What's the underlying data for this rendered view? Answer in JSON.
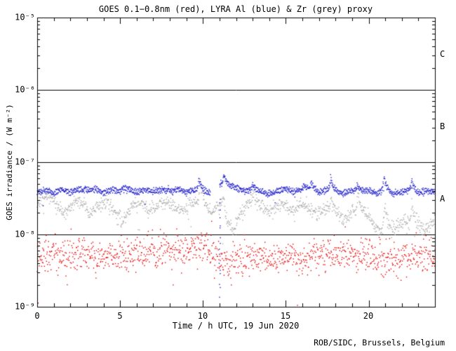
{
  "title": "GOES 0.1−0.8nm (red), LYRA Al (blue) & Zr (grey) proxy",
  "credit": "ROB/SIDC, Brussels, Belgium",
  "colors": {
    "red_series": "#e60000",
    "blue_series": "#1515c8",
    "grey_series": "#a9a9a9",
    "axis": "#000000",
    "background": "#ffffff"
  },
  "chart_data": {
    "type": "scatter",
    "title": "GOES 0.1−0.8nm (red), LYRA Al (blue) & Zr (grey) proxy",
    "xlabel": "Time / h UTC, 19 Jun 2020",
    "ylabel": "GOES irradiance / (W m⁻²)",
    "xlim": [
      0,
      24
    ],
    "ylog10_lim": [
      -9,
      -5
    ],
    "grid": "horizontal decade lines at 1e-6, 1e-7, 1e-8",
    "hlines_exp": [
      -6,
      -7,
      -8
    ],
    "xticks": {
      "major": [
        0,
        5,
        10,
        15,
        20
      ],
      "labels": [
        "0",
        "5",
        "10",
        "15",
        "20"
      ],
      "minor_step_h": 1
    },
    "yticks": {
      "major_exp": [
        -5,
        -6,
        -7,
        -8,
        -9
      ],
      "labels": [
        "10⁻⁵",
        "10⁻⁶",
        "10⁻⁷",
        "10⁻⁸",
        "10⁻⁹"
      ]
    },
    "flare_class_labels": [
      "C",
      "B",
      "A"
    ],
    "flare_class_exp_center": [
      -5.5,
      -6.5,
      -7.5
    ],
    "series": [
      {
        "name": "LYRA Zr proxy",
        "color": "#a9a9a9",
        "n": 1100,
        "sigma_log10": 0.05,
        "anchors_log10": [
          [
            0,
            -7.58
          ],
          [
            0.3,
            -7.5
          ],
          [
            0.8,
            -7.48
          ],
          [
            1.3,
            -7.62
          ],
          [
            1.8,
            -7.68
          ],
          [
            2.3,
            -7.52
          ],
          [
            2.8,
            -7.58
          ],
          [
            3.2,
            -7.72
          ],
          [
            3.7,
            -7.6
          ],
          [
            4.2,
            -7.55
          ],
          [
            4.7,
            -7.68
          ],
          [
            5.2,
            -7.82
          ],
          [
            5.7,
            -7.6
          ],
          [
            6.2,
            -7.55
          ],
          [
            6.7,
            -7.67
          ],
          [
            7.2,
            -7.62
          ],
          [
            7.7,
            -7.55
          ],
          [
            8.2,
            -7.6
          ],
          [
            8.7,
            -7.68
          ],
          [
            9.2,
            -7.6
          ],
          [
            9.6,
            -7.55
          ],
          [
            10.1,
            -7.62
          ],
          [
            10.5,
            -7.7
          ],
          [
            10.9,
            -7.62
          ],
          [
            11.2,
            -7.58
          ],
          [
            11.5,
            -7.88
          ],
          [
            11.8,
            -7.95
          ],
          [
            12.2,
            -7.75
          ],
          [
            12.6,
            -7.6
          ],
          [
            13,
            -7.52
          ],
          [
            13.4,
            -7.58
          ],
          [
            13.9,
            -7.68
          ],
          [
            14.4,
            -7.62
          ],
          [
            14.9,
            -7.58
          ],
          [
            15.4,
            -7.68
          ],
          [
            15.9,
            -7.58
          ],
          [
            16.4,
            -7.62
          ],
          [
            16.9,
            -7.72
          ],
          [
            17.4,
            -7.65
          ],
          [
            18.1,
            -7.72
          ],
          [
            18.6,
            -7.78
          ],
          [
            19,
            -7.68
          ],
          [
            19.8,
            -7.72
          ],
          [
            20.3,
            -7.85
          ],
          [
            20.7,
            -7.95
          ],
          [
            21.3,
            -7.95
          ],
          [
            21.7,
            -7.88
          ],
          [
            22.1,
            -7.82
          ],
          [
            23,
            -7.88
          ],
          [
            23.4,
            -7.95
          ],
          [
            23.7,
            -7.85
          ],
          [
            24,
            -7.75
          ]
        ],
        "spikes": [
          [
            9.83,
            0.38
          ],
          [
            11.25,
            0.15
          ],
          [
            13.0,
            0.08
          ],
          [
            17.7,
            0.22
          ],
          [
            19.35,
            0.28
          ],
          [
            20.95,
            0.38
          ],
          [
            22.6,
            0.3
          ]
        ],
        "outliers": {
          "prob": 0.012,
          "min": -0.5,
          "max": 0.1
        }
      },
      {
        "name": "GOES 0.1-0.8nm",
        "color": "#e60000",
        "n": 1150,
        "sigma_log10": 0.12,
        "anchors_log10": [
          [
            0,
            -8.32
          ],
          [
            1,
            -8.28
          ],
          [
            2,
            -8.3
          ],
          [
            3,
            -8.27
          ],
          [
            4,
            -8.33
          ],
          [
            5,
            -8.3
          ],
          [
            6,
            -8.28
          ],
          [
            7,
            -8.24
          ],
          [
            8,
            -8.2
          ],
          [
            9,
            -8.22
          ],
          [
            9.8,
            -8.18
          ],
          [
            10.5,
            -8.25
          ],
          [
            11,
            -8.28
          ],
          [
            11.5,
            -8.45
          ],
          [
            12,
            -8.35
          ],
          [
            12.5,
            -8.28
          ],
          [
            13,
            -8.3
          ],
          [
            14,
            -8.35
          ],
          [
            15,
            -8.3
          ],
          [
            16,
            -8.36
          ],
          [
            17,
            -8.3
          ],
          [
            18,
            -8.28
          ],
          [
            19,
            -8.31
          ],
          [
            20,
            -8.3
          ],
          [
            21,
            -8.36
          ],
          [
            22,
            -8.32
          ],
          [
            23,
            -8.3
          ],
          [
            24,
            -8.3
          ]
        ],
        "spikes": [],
        "outliers": {
          "prob": 0.02,
          "min": -0.6,
          "max": 0.35
        }
      },
      {
        "name": "LYRA Al proxy",
        "color": "#1515c8",
        "n": 1350,
        "sigma_log10": 0.014,
        "split_log10": 0.02,
        "anchors_log10": [
          [
            0,
            -7.42
          ],
          [
            0.5,
            -7.39
          ],
          [
            1,
            -7.43
          ],
          [
            1.5,
            -7.38
          ],
          [
            2,
            -7.42
          ],
          [
            2.5,
            -7.37
          ],
          [
            3,
            -7.41
          ],
          [
            3.5,
            -7.37
          ],
          [
            4,
            -7.42
          ],
          [
            4.5,
            -7.38
          ],
          [
            5,
            -7.41
          ],
          [
            5.5,
            -7.37
          ],
          [
            6,
            -7.42
          ],
          [
            6.5,
            -7.38
          ],
          [
            7,
            -7.41
          ],
          [
            7.5,
            -7.38
          ],
          [
            8,
            -7.43
          ],
          [
            8.5,
            -7.38
          ],
          [
            9,
            -7.41
          ],
          [
            9.5,
            -7.39
          ],
          [
            10,
            -7.41
          ],
          [
            10.4,
            -7.43
          ],
          [
            11.05,
            -7.3
          ],
          [
            11.5,
            -7.32
          ],
          [
            12,
            -7.36
          ],
          [
            12.5,
            -7.4
          ],
          [
            13,
            -7.37
          ],
          [
            13.5,
            -7.41
          ],
          [
            14,
            -7.44
          ],
          [
            14.5,
            -7.4
          ],
          [
            15,
            -7.37
          ],
          [
            15.5,
            -7.41
          ],
          [
            16,
            -7.38
          ],
          [
            16.5,
            -7.36
          ],
          [
            17,
            -7.42
          ],
          [
            17.5,
            -7.38
          ],
          [
            18,
            -7.41
          ],
          [
            18.5,
            -7.43
          ],
          [
            19,
            -7.39
          ],
          [
            19.5,
            -7.41
          ],
          [
            20,
            -7.39
          ],
          [
            20.5,
            -7.43
          ],
          [
            21,
            -7.39
          ],
          [
            21.5,
            -7.44
          ],
          [
            22,
            -7.41
          ],
          [
            22.5,
            -7.38
          ],
          [
            23,
            -7.43
          ],
          [
            23.5,
            -7.4
          ],
          [
            24,
            -7.41
          ]
        ],
        "spikes": [
          [
            2.9,
            0.05
          ],
          [
            5.15,
            0.05
          ],
          [
            7.9,
            0.06
          ],
          [
            9.75,
            0.17
          ],
          [
            11.25,
            0.13
          ],
          [
            13.0,
            0.06
          ],
          [
            16.1,
            0.06
          ],
          [
            16.55,
            0.08
          ],
          [
            17.7,
            0.18
          ],
          [
            19.3,
            0.1
          ],
          [
            20.9,
            0.2
          ],
          [
            22.6,
            0.14
          ]
        ],
        "gaps": [
          [
            10.45,
            11.0
          ]
        ],
        "dropcols": [
          {
            "t": 11.02,
            "v_from": -7.45,
            "v_to": -8.9,
            "n": 16
          }
        ],
        "outliers": {
          "prob": 0.01,
          "min": -0.25,
          "max": 0.05
        }
      }
    ]
  }
}
